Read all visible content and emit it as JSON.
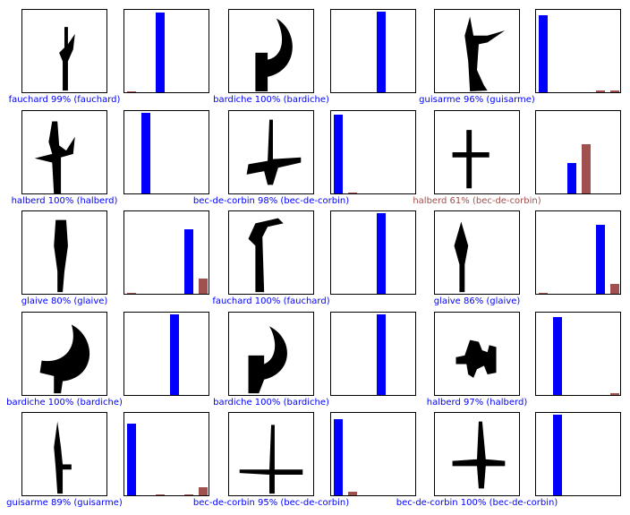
{
  "colors": {
    "correct": "#0000ff",
    "predicted_wrong": "#a0504e",
    "other": "#a0504e",
    "ink": "#000000"
  },
  "classes": [
    "bec-de-corbin",
    "bardiche",
    "fauchard",
    "glaive",
    "guisarme",
    "halberd"
  ],
  "chart_data": [
    {
      "type": "bar",
      "image_icon": "fauchard-silhouette",
      "caption": "fauchard 99% (fauchard)",
      "values": [
        0.01,
        0,
        0.99,
        0,
        0,
        0
      ],
      "predicted": 2,
      "true": 2
    },
    {
      "type": "bar",
      "image_icon": "bardiche-silhouette",
      "caption": "bardiche 100% (bardiche)",
      "values": [
        0,
        0,
        0,
        1.0,
        0,
        0
      ],
      "predicted": 3,
      "true": 3
    },
    {
      "type": "bar",
      "image_icon": "guisarme-silhouette",
      "caption": "guisarme 96% (guisarme)",
      "values": [
        0.96,
        0,
        0,
        0,
        0.02,
        0.02
      ],
      "predicted": 0,
      "true": 0
    },
    {
      "type": "bar",
      "image_icon": "halberd-silhouette",
      "caption": "halberd 100% (halberd)",
      "values": [
        0,
        1.0,
        0,
        0,
        0,
        0
      ],
      "predicted": 1,
      "true": 1
    },
    {
      "type": "bar",
      "image_icon": "bec-de-corbin-silhouette",
      "caption": "bec-de-corbin 98% (bec-de-corbin)",
      "values": [
        0.98,
        0.01,
        0,
        0,
        0,
        0
      ],
      "predicted": 0,
      "true": 0
    },
    {
      "type": "bar",
      "image_icon": "halberd-wrong-silhouette",
      "caption": "halberd 61% (bec-de-corbin)",
      "values": [
        0,
        0,
        0.38,
        0.61,
        0,
        0
      ],
      "predicted": 3,
      "true": 2
    },
    {
      "type": "bar",
      "image_icon": "glaive-silhouette",
      "caption": "glaive 80% (glaive)",
      "values": [
        0.01,
        0,
        0,
        0,
        0.8,
        0.19
      ],
      "predicted": 4,
      "true": 4
    },
    {
      "type": "bar",
      "image_icon": "fauchard-hook-silhouette",
      "caption": "fauchard 100% (fauchard)",
      "values": [
        0,
        0,
        0,
        1.0,
        0,
        0
      ],
      "predicted": 3,
      "true": 3
    },
    {
      "type": "bar",
      "image_icon": "glaive-2-silhouette",
      "caption": "glaive 86% (glaive)",
      "values": [
        0.01,
        0,
        0,
        0,
        0.86,
        0.12
      ],
      "predicted": 4,
      "true": 4
    },
    {
      "type": "bar",
      "image_icon": "bardiche-2-silhouette",
      "caption": "bardiche 100% (bardiche)",
      "values": [
        0,
        0,
        0,
        1.0,
        0,
        0
      ],
      "predicted": 3,
      "true": 3
    },
    {
      "type": "bar",
      "image_icon": "bardiche-3-silhouette",
      "caption": "bardiche 100% (bardiche)",
      "values": [
        0,
        0,
        0,
        1.0,
        0,
        0
      ],
      "predicted": 3,
      "true": 3
    },
    {
      "type": "bar",
      "image_icon": "halberd-2-silhouette",
      "caption": "halberd 97% (halberd)",
      "values": [
        0,
        0.97,
        0,
        0,
        0,
        0.02
      ],
      "predicted": 1,
      "true": 1
    },
    {
      "type": "bar",
      "image_icon": "guisarme-2-silhouette",
      "caption": "guisarme 89% (guisarme)",
      "values": [
        0.89,
        0,
        0.01,
        0,
        0.01,
        0.1
      ],
      "predicted": 0,
      "true": 0
    },
    {
      "type": "bar",
      "image_icon": "bec-de-corbin-2-silhouette",
      "caption": "bec-de-corbin 95% (bec-de-corbin)",
      "values": [
        0.95,
        0.04,
        0,
        0,
        0,
        0
      ],
      "predicted": 0,
      "true": 0
    },
    {
      "type": "bar",
      "image_icon": "bec-de-corbin-3-silhouette",
      "caption": "bec-de-corbin 100% (bec-de-corbin)",
      "values": [
        0,
        1.0,
        0,
        0,
        0,
        0
      ],
      "predicted": 1,
      "true": 1
    }
  ]
}
